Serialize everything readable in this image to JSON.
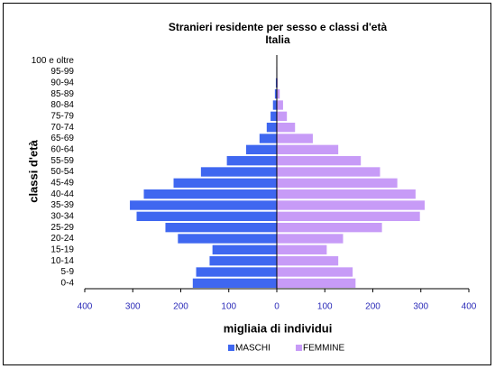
{
  "chart_data": {
    "type": "pyramid",
    "title": "Stranieri residente per sesso e classi d'età",
    "subtitle": "Italia",
    "x_label": "migliaia di individui",
    "y_label": "classi d'età",
    "categories": [
      "0-4",
      "5-9",
      "10-14",
      "15-19",
      "20-24",
      "25-29",
      "30-34",
      "35-39",
      "40-44",
      "45-49",
      "50-54",
      "55-59",
      "60-64",
      "65-69",
      "70-74",
      "75-79",
      "80-84",
      "85-89",
      "90-94",
      "95-99",
      "100 e oltre"
    ],
    "series": [
      {
        "name": "MASCHI",
        "color": "#3f67f0",
        "values": [
          -175,
          -168,
          -140,
          -134,
          -206,
          -232,
          -292,
          -306,
          -277,
          -215,
          -158,
          -104,
          -64,
          -36,
          -21,
          -13,
          -8,
          -4,
          -2,
          -1,
          -0.5
        ]
      },
      {
        "name": "FEMMINE",
        "color": "#c79bf7",
        "values": [
          164,
          158,
          128,
          104,
          138,
          219,
          298,
          308,
          289,
          251,
          215,
          175,
          128,
          75,
          38,
          21,
          13,
          6,
          2,
          1,
          0.5
        ]
      }
    ],
    "xlim": [
      -400,
      400
    ],
    "xticks": [
      {
        "value": -400,
        "label": "400"
      },
      {
        "value": -300,
        "label": "300"
      },
      {
        "value": -200,
        "label": "200"
      },
      {
        "value": -100,
        "label": "100"
      },
      0,
      100,
      200,
      300,
      400
    ],
    "legend": "bottom"
  }
}
